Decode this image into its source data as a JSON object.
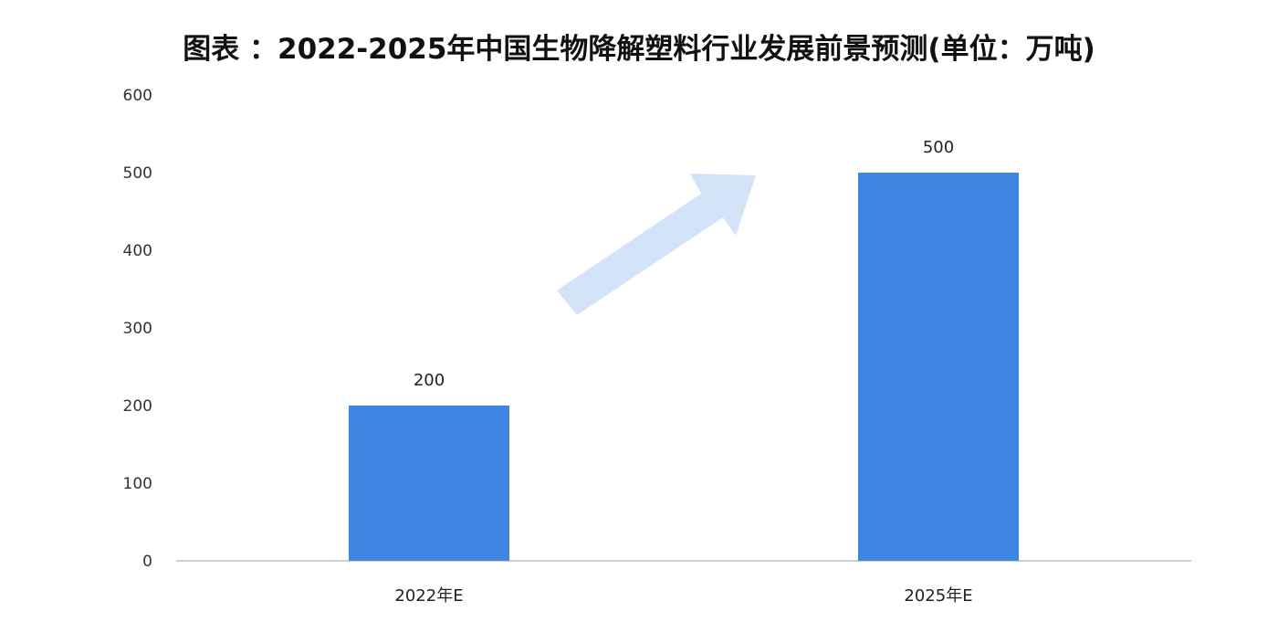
{
  "chart_data": {
    "type": "bar",
    "title": "图表 ：2022-2025年中国生物降解塑料行业发展前景预测(单位：万吨)",
    "categories": [
      "2022年E",
      "2025年E"
    ],
    "values": [
      200,
      500
    ],
    "data_labels": [
      "200",
      "500"
    ],
    "ylim": [
      0,
      600
    ],
    "yticks": [
      0,
      100,
      200,
      300,
      400,
      500,
      600
    ],
    "xlabel": "",
    "ylabel": "",
    "grid": false,
    "legend": "none",
    "bar_color": "#3f86e3",
    "annotation": "light-blue upward arrow between bars",
    "arrow_color": "#d3e3f8"
  }
}
